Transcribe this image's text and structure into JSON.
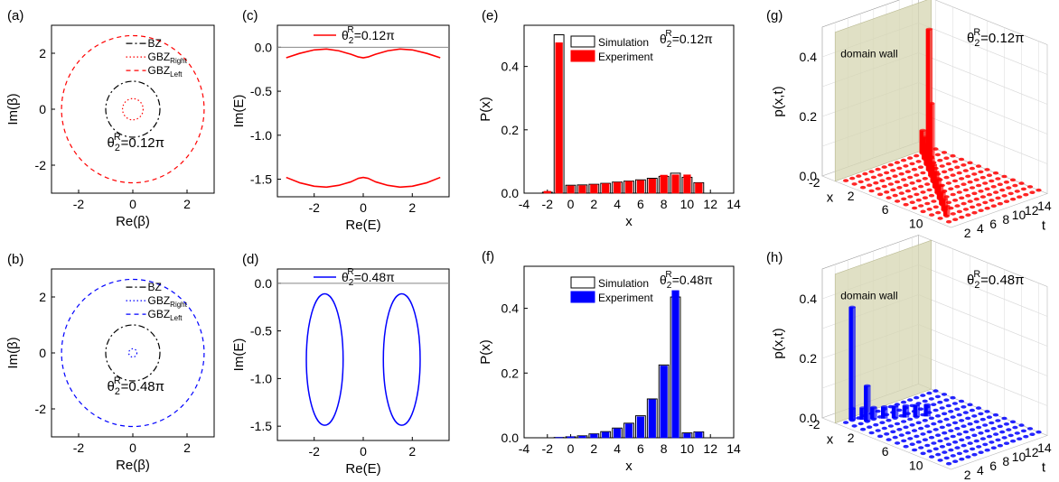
{
  "colors": {
    "red": "#ff0000",
    "blue": "#0000ff",
    "black": "#000000",
    "wall": "#d6d6b2",
    "gray": "#888888"
  },
  "panel_labels": [
    "(a)",
    "(b)",
    "(c)",
    "(d)",
    "(e)",
    "(f)",
    "(g)",
    "(h)"
  ],
  "chart_data": [
    {
      "id": "a",
      "type": "line",
      "xlabel": "Re(β)",
      "ylabel": "Im(β)",
      "xlim": [
        -3,
        3
      ],
      "ylim": [
        -3,
        3
      ],
      "xticks": [
        -2,
        0,
        2
      ],
      "yticks": [
        -2,
        0,
        2
      ],
      "theta_label": {
        "main": "θ",
        "sub": "2",
        "sup": "R",
        "value": "=0.12π"
      },
      "legend": [
        {
          "name": "BZ",
          "color": "#000000",
          "style": "dashdot"
        },
        {
          "name": "GBZ",
          "sub": "Right",
          "color": "#ff0000",
          "style": "dot"
        },
        {
          "name": "GBZ",
          "sub": "Left",
          "color": "#ff0000",
          "style": "dash"
        }
      ],
      "circles": [
        {
          "series": "BZ",
          "radius": 1.0
        },
        {
          "series": "GBZ_Right",
          "radius": 0.38
        },
        {
          "series": "GBZ_Left",
          "radius": 2.63
        }
      ]
    },
    {
      "id": "b",
      "type": "line",
      "xlabel": "Re(β)",
      "ylabel": "Im(β)",
      "xlim": [
        -3,
        3
      ],
      "ylim": [
        -3,
        3
      ],
      "xticks": [
        -2,
        0,
        2
      ],
      "yticks": [
        -2,
        0,
        2
      ],
      "theta_label": {
        "main": "θ",
        "sub": "2",
        "sup": "R",
        "value": "=0.48π"
      },
      "legend": [
        {
          "name": "BZ",
          "color": "#000000",
          "style": "dashdot"
        },
        {
          "name": "GBZ",
          "sub": "Right",
          "color": "#0000ff",
          "style": "dot"
        },
        {
          "name": "GBZ",
          "sub": "Left",
          "color": "#0000ff",
          "style": "dash"
        }
      ],
      "circles": [
        {
          "series": "BZ",
          "radius": 1.0
        },
        {
          "series": "GBZ_Right",
          "radius": 0.15
        },
        {
          "series": "GBZ_Left",
          "radius": 2.63
        }
      ]
    },
    {
      "id": "c",
      "type": "line",
      "xlabel": "Re(E)",
      "ylabel": "Im(E)",
      "xlim": [
        -3.5,
        3.5
      ],
      "ylim": [
        -1.7,
        0.25
      ],
      "xticks": [
        -2,
        0,
        2
      ],
      "yticks": [
        0.0,
        -0.5,
        -1.0,
        -1.5
      ],
      "legend_theta": {
        "main": "θ",
        "sub": "2",
        "sup": "R",
        "value": "=0.12π"
      },
      "series": [
        {
          "name": "upper band",
          "x": [
            -3.14,
            -2.6,
            -2.0,
            -1.5,
            -1.0,
            -0.5,
            -0.2,
            0,
            0.2,
            0.5,
            1.0,
            1.5,
            2.0,
            2.6,
            3.14
          ],
          "y": [
            -0.12,
            -0.07,
            -0.03,
            -0.02,
            -0.04,
            -0.08,
            -0.11,
            -0.12,
            -0.11,
            -0.08,
            -0.04,
            -0.02,
            -0.03,
            -0.07,
            -0.12
          ]
        },
        {
          "name": "lower band",
          "x": [
            -3.14,
            -2.6,
            -2.0,
            -1.5,
            -1.0,
            -0.5,
            -0.2,
            0,
            0.2,
            0.5,
            1.0,
            1.5,
            2.0,
            2.6,
            3.14
          ],
          "y": [
            -1.48,
            -1.54,
            -1.58,
            -1.59,
            -1.57,
            -1.53,
            -1.49,
            -1.48,
            -1.49,
            -1.53,
            -1.57,
            -1.59,
            -1.58,
            -1.54,
            -1.48
          ]
        }
      ],
      "hline": 0.0
    },
    {
      "id": "d",
      "type": "line",
      "xlabel": "Re(E)",
      "ylabel": "Im(E)",
      "xlim": [
        -3.5,
        3.5
      ],
      "ylim": [
        -1.65,
        0.15
      ],
      "xticks": [
        -2,
        0,
        2
      ],
      "yticks": [
        0.0,
        -0.5,
        -1.0,
        -1.5
      ],
      "legend_theta": {
        "main": "θ",
        "sub": "2",
        "sup": "R",
        "value": "=0.48π"
      },
      "ellipses": [
        {
          "cx": -1.57,
          "cy": -0.8,
          "rx": 0.75,
          "ry": 0.69
        },
        {
          "cx": 1.57,
          "cy": -0.8,
          "rx": 0.75,
          "ry": 0.69
        }
      ],
      "hline": 0.0
    },
    {
      "id": "e",
      "type": "bar",
      "xlabel": "x",
      "ylabel": "P(x)",
      "xlim": [
        -4,
        14
      ],
      "ylim": [
        0,
        0.53
      ],
      "xticks": [
        -4,
        -2,
        0,
        2,
        4,
        6,
        8,
        10,
        12,
        14
      ],
      "yticks": [
        0.0,
        0.2,
        0.4
      ],
      "theta_label": {
        "main": "θ",
        "sub": "2",
        "sup": "R",
        "value": "=0.12π"
      },
      "legend": [
        "Simulation",
        "Experiment"
      ],
      "x": [
        -2,
        -1,
        0,
        1,
        2,
        3,
        4,
        5,
        6,
        7,
        8,
        9,
        10,
        11
      ],
      "series": [
        {
          "name": "Simulation",
          "values": [
            0.003,
            0.5,
            0.025,
            0.026,
            0.028,
            0.031,
            0.035,
            0.038,
            0.042,
            0.047,
            0.053,
            0.063,
            0.05,
            0.033
          ]
        },
        {
          "name": "Experiment",
          "values": [
            0.006,
            0.475,
            0.023,
            0.024,
            0.027,
            0.03,
            0.034,
            0.037,
            0.04,
            0.045,
            0.057,
            0.058,
            0.058,
            0.032
          ]
        }
      ]
    },
    {
      "id": "f",
      "type": "bar",
      "xlabel": "x",
      "ylabel": "P(x)",
      "xlim": [
        -4,
        14
      ],
      "ylim": [
        0,
        0.53
      ],
      "xticks": [
        -4,
        -2,
        0,
        2,
        4,
        6,
        8,
        10,
        12,
        14
      ],
      "yticks": [
        0.0,
        0.2,
        0.4
      ],
      "theta_label": {
        "main": "θ",
        "sub": "2",
        "sup": "R",
        "value": "=0.48π"
      },
      "legend": [
        "Simulation",
        "Experiment"
      ],
      "x": [
        -2,
        -1,
        0,
        1,
        2,
        3,
        4,
        5,
        6,
        7,
        8,
        9,
        10,
        11
      ],
      "series": [
        {
          "name": "Simulation",
          "values": [
            0.0,
            0.001,
            0.003,
            0.006,
            0.012,
            0.019,
            0.03,
            0.045,
            0.068,
            0.12,
            0.225,
            0.435,
            0.015,
            0.018
          ]
        },
        {
          "name": "Experiment",
          "values": [
            0.0,
            0.001,
            0.003,
            0.005,
            0.011,
            0.017,
            0.028,
            0.043,
            0.065,
            0.118,
            0.222,
            0.455,
            0.013,
            0.017
          ]
        }
      ]
    },
    {
      "id": "g",
      "type": "bar",
      "xlabel": "x",
      "ylabel": "p(x,t)",
      "tlabel": "t",
      "annotation": "domain wall",
      "theta_label": {
        "main": "θ",
        "sub": "2",
        "sup": "R",
        "value": "=0.12π"
      },
      "zticks": [
        "0.0",
        "0.2",
        "0.4"
      ],
      "xticks": [
        "-2",
        "2",
        "6",
        "10"
      ],
      "tticks": [
        "2",
        "4",
        "6",
        "8",
        "10",
        "12",
        "14"
      ],
      "tall_bars": [
        {
          "x": -1,
          "t": 14,
          "p": 0.41
        },
        {
          "x": 0,
          "t": 13,
          "p": 0.18
        }
      ]
    },
    {
      "id": "h",
      "type": "bar",
      "xlabel": "x",
      "ylabel": "p(x,t)",
      "tlabel": "t",
      "annotation": "domain wall",
      "theta_label": {
        "main": "θ",
        "sub": "2",
        "sup": "R",
        "value": "=0.48π"
      },
      "zticks": [
        "0.0",
        "0.2",
        "0.4"
      ],
      "xticks": [
        "-2",
        "2",
        "6",
        "10"
      ],
      "tticks": [
        "2",
        "4",
        "6",
        "8",
        "10",
        "12",
        "14"
      ],
      "tall_bars": [
        {
          "x": -1,
          "t": 2,
          "p": 0.38
        },
        {
          "x": 0,
          "t": 3,
          "p": 0.12
        }
      ]
    }
  ]
}
